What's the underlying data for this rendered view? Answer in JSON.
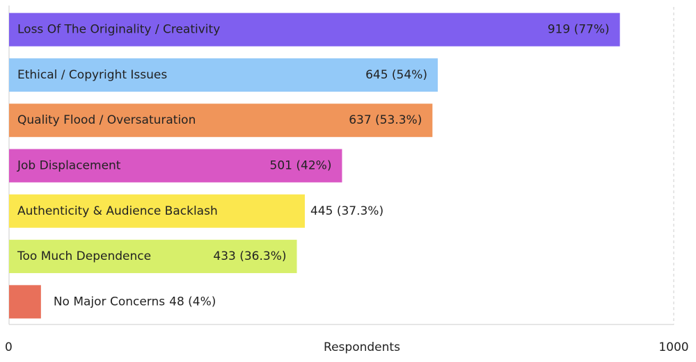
{
  "chart_data": {
    "type": "hbar",
    "x_label": "Respondents",
    "categories": [
      "Loss Of The Originality / Creativity",
      "Ethical / Copyright Issues",
      "Quality Flood / Oversaturation",
      "Job Displacement",
      "Authenticity & Audience Backlash",
      "Too Much Dependence",
      "No Major Concerns"
    ],
    "values": [
      919,
      645,
      637,
      501,
      445,
      433,
      48
    ],
    "value_labels": [
      "919 (77%)",
      "645 (54%)",
      "637 (53.3%)",
      "501 (42%)",
      "445 (37.3%)",
      "433 (36.3%)",
      "48 (4%)"
    ],
    "colors": [
      "#7f5fef",
      "#93c9f8",
      "#f0955a",
      "#d957c4",
      "#fbe74e",
      "#d7ef6a",
      "#e8705a"
    ],
    "xlim": [
      0,
      1000
    ],
    "xticks": [
      0,
      1000
    ]
  }
}
